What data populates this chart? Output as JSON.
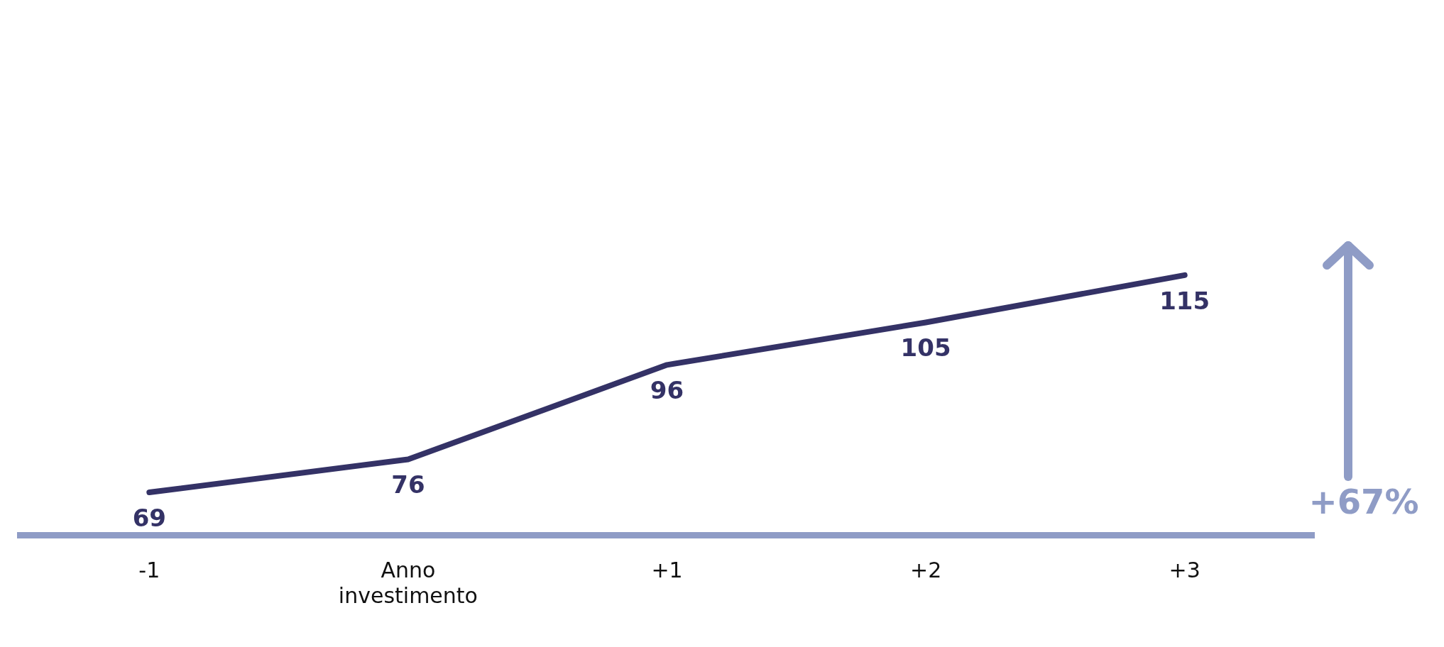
{
  "chart_data": {
    "type": "line",
    "categories": [
      "-1",
      "Anno investimento",
      "+1",
      "+2",
      "+3"
    ],
    "series": [
      {
        "color": "#343266",
        "values": [
          69,
          76,
          96,
          105,
          115
        ]
      }
    ],
    "tick_labels": "x",
    "data_labels": true,
    "grid": false,
    "legend": false,
    "marker": "none",
    "annotations": [
      "+67%"
    ]
  }
}
